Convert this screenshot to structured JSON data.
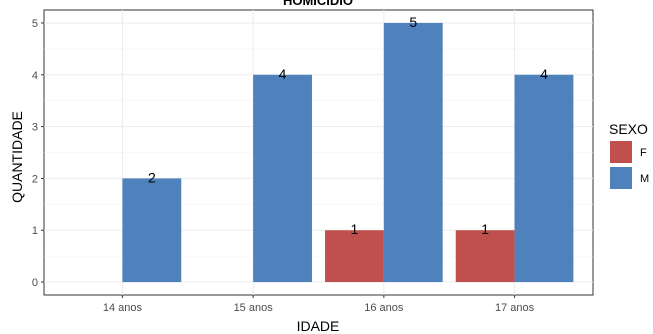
{
  "chart_data": {
    "type": "bar",
    "title": "HOMICÍDIO",
    "xlabel": "IDADE",
    "ylabel": "QUANTIDADE",
    "categories": [
      "14 anos",
      "15 anos",
      "16 anos",
      "17 anos"
    ],
    "series": [
      {
        "name": "F",
        "color": "#C0504D",
        "values": [
          null,
          null,
          1,
          1
        ]
      },
      {
        "name": "M",
        "color": "#4F81BD",
        "values": [
          2,
          4,
          5,
          4
        ]
      }
    ],
    "ylim": [
      0,
      5
    ],
    "yticks": [
      0,
      1,
      2,
      3,
      4,
      5
    ],
    "grid": true,
    "legend": {
      "title": "SEXO",
      "position": "right"
    }
  }
}
